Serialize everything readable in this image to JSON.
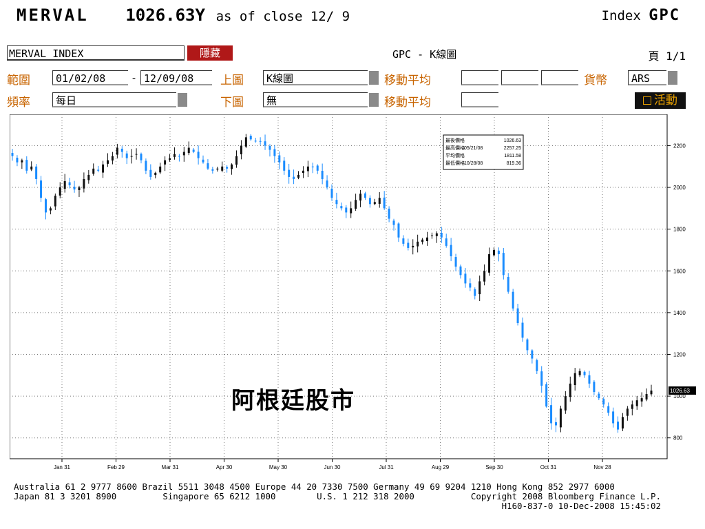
{
  "header": {
    "ticker": "MERVAL",
    "price": "1026.63Y",
    "as_of": "as of close 12/ 9",
    "index_label": "Index",
    "index_code": "GPC"
  },
  "toolbar": {
    "index_name": "MERVAL INDEX",
    "hide_label": "隱藏",
    "title": "GPC - K線圖",
    "page": "頁 1/1",
    "range_label": "範圍",
    "date_from": "01/02/08",
    "range_dash": "-",
    "date_to": "12/09/08",
    "upper_label": "上圖",
    "upper_value": "K線圖",
    "ma_label_1": "移動平均",
    "currency_label": "貨幣",
    "currency_value": "ARS",
    "freq_label": "頻率",
    "freq_value": "每日",
    "lower_label": "下圖",
    "lower_value": "無",
    "ma_label_2": "移動平均",
    "active_label": "活動"
  },
  "legend": {
    "rows": [
      {
        "label": "最後價格",
        "date": "",
        "value": "1026.63"
      },
      {
        "label": "最高價格",
        "date": "05/21/08",
        "value": "2257.25"
      },
      {
        "label": "平均價格",
        "date": "",
        "value": "1811.58"
      },
      {
        "label": "最低價格",
        "date": "10/28/08",
        "value": "819.36"
      }
    ]
  },
  "watermark": "阿根廷股市",
  "colors": {
    "up_candle": "#111111",
    "down_candle": "#1a8cff",
    "accent_orange": "#c86400",
    "hide_red": "#b01818"
  },
  "chart_data": {
    "type": "candlestick",
    "y_ticks": [
      800,
      1000,
      1200,
      1400,
      1600,
      1800,
      2000,
      2200
    ],
    "ylim": [
      700,
      2350
    ],
    "x_tick_labels": [
      "Jan 31",
      "Feb 29",
      "Mar 31",
      "Apr 30",
      "May 30",
      "Jun 30",
      "Jul 31",
      "Aug 29",
      "Sep 30",
      "Oct 31",
      "Nov 28"
    ],
    "last_price_label": "1026.63",
    "last_price": 1026.63,
    "approx_close_series": [
      2150,
      2120,
      2130,
      2080,
      2100,
      2040,
      1950,
      1880,
      1900,
      1960,
      2000,
      2030,
      2010,
      1990,
      2000,
      2040,
      2060,
      2090,
      2080,
      2110,
      2130,
      2150,
      2190,
      2170,
      2140,
      2150,
      2160,
      2130,
      2080,
      2050,
      2070,
      2100,
      2130,
      2140,
      2160,
      2150,
      2170,
      2190,
      2170,
      2140,
      2120,
      2090,
      2080,
      2090,
      2100,
      2090,
      2110,
      2150,
      2200,
      2240,
      2230,
      2220,
      2220,
      2200,
      2180,
      2150,
      2120,
      2080,
      2050,
      2040,
      2060,
      2080,
      2100,
      2100,
      2080,
      2040,
      2000,
      1950,
      1920,
      1900,
      1880,
      1900,
      1940,
      1970,
      1950,
      1920,
      1930,
      1950,
      1900,
      1850,
      1820,
      1760,
      1730,
      1710,
      1720,
      1740,
      1750,
      1760,
      1770,
      1780,
      1760,
      1720,
      1670,
      1620,
      1580,
      1540,
      1520,
      1480,
      1550,
      1600,
      1680,
      1700,
      1680,
      1580,
      1500,
      1420,
      1350,
      1280,
      1220,
      1180,
      1120,
      1050,
      950,
      870,
      860,
      940,
      1000,
      1060,
      1110,
      1120,
      1100,
      1060,
      1020,
      990,
      960,
      920,
      870,
      840,
      900,
      940,
      960,
      980,
      990,
      1010,
      1026.63
    ]
  }
}
